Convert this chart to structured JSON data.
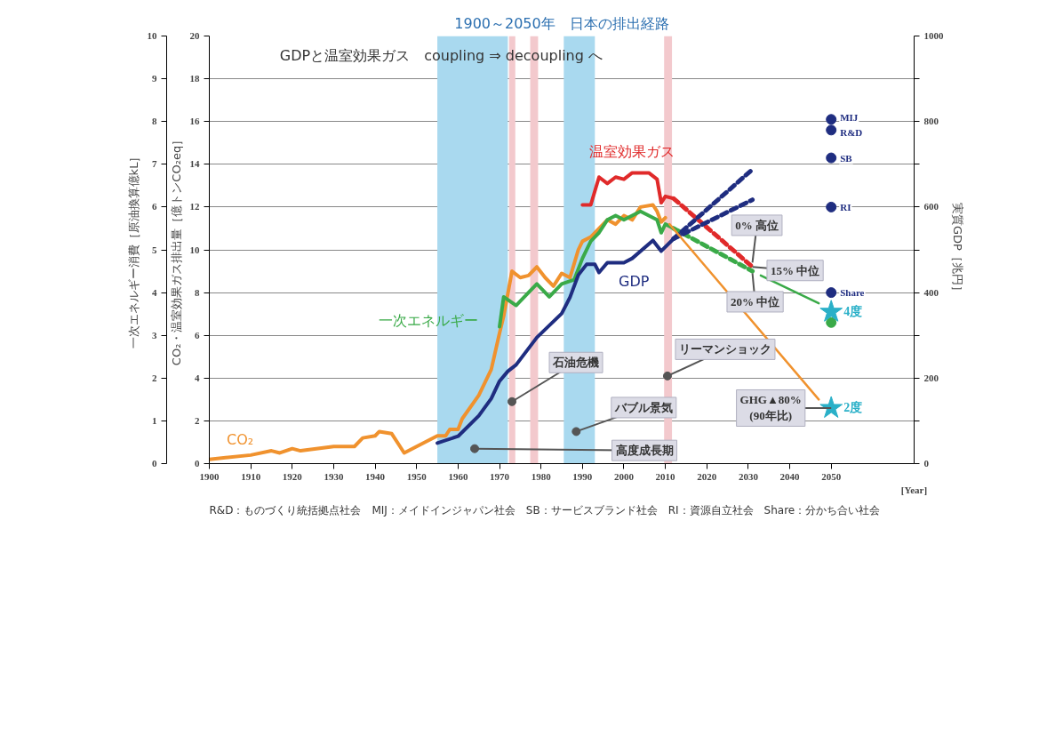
{
  "chart_data": {
    "type": "line",
    "title": "1900～2050年　日本の排出経路",
    "subtitle": "GDPと温室効果ガス　coupling ⇒ decoupling へ",
    "xlabel": "[Year]",
    "ylabel": "CO₂・温室効果ガス排出量［億トンCO₂eq］",
    "y2label": "実質GDP［兆円］",
    "y3label": "一次エネルギー消費［原油換算億kL］",
    "xlim": [
      1900,
      2070
    ],
    "xticks": [
      1900,
      1910,
      1920,
      1930,
      1940,
      1950,
      1960,
      1970,
      1980,
      1990,
      2000,
      2010,
      2020,
      2030,
      2040,
      2050
    ],
    "ylim": [
      0,
      20
    ],
    "yticks": [
      0,
      2,
      4,
      6,
      8,
      10,
      12,
      14,
      16,
      18,
      20
    ],
    "y2lim": [
      0,
      1000
    ],
    "y2ticks": [
      0,
      {
        "value": 100,
        "label": null
      },
      200,
      {
        "value": 300,
        "label": null
      },
      400,
      {
        "value": 500,
        "label": null
      },
      600,
      {
        "value": 700,
        "label": null
      },
      800,
      {
        "value": 900,
        "label": null
      },
      1000
    ],
    "y3lim": [
      0,
      10
    ],
    "y3ticks": [
      0,
      1,
      2,
      3,
      4,
      5,
      6,
      7,
      8,
      9,
      10
    ],
    "grid": "y",
    "bands": [
      {
        "axis": "x",
        "from": 1955,
        "to": 1972,
        "color": "#a9d9ef"
      },
      {
        "axis": "x",
        "from": 1985.5,
        "to": 1993,
        "color": "#a9d9ef"
      },
      {
        "axis": "x",
        "from": 1972.3,
        "to": 1973.8,
        "color": "#f3c9cd"
      },
      {
        "axis": "x",
        "from": 1977.4,
        "to": 1979.3,
        "color": "#f3c9cd"
      },
      {
        "axis": "x",
        "from": 2009.7,
        "to": 2011.6,
        "color": "#f3c9cd"
      }
    ],
    "series": [
      {
        "name": "CO₂",
        "color": "#f0922e",
        "x": [
          1900,
          1910,
          1915,
          1917,
          1920,
          1922,
          1930,
          1935,
          1937,
          1940,
          1941,
          1944,
          1946,
          1947,
          1950,
          1955,
          1957,
          1958,
          1960,
          1961,
          1965,
          1968,
          1970,
          1971,
          1973,
          1975,
          1977,
          1979,
          1981,
          1983,
          1985,
          1987,
          1989,
          1990,
          1992,
          1996,
          1998,
          2000,
          2002,
          2004,
          2007,
          2008,
          2009,
          2010
        ],
        "values": [
          0.2,
          0.4,
          0.6,
          0.5,
          0.7,
          0.6,
          0.8,
          0.8,
          1.2,
          1.3,
          1.5,
          1.4,
          0.8,
          0.5,
          0.8,
          1.3,
          1.3,
          1.6,
          1.6,
          2.1,
          3.2,
          4.4,
          6.1,
          6.9,
          9.0,
          8.7,
          8.8,
          9.2,
          8.7,
          8.3,
          8.9,
          8.7,
          10.0,
          10.4,
          10.6,
          11.4,
          11.2,
          11.6,
          11.4,
          12.0,
          12.1,
          11.8,
          11.3,
          11.5
        ]
      },
      {
        "name": "一次エネルギー",
        "color": "#3aaa48",
        "axis": "y3",
        "x": [
          1970,
          1971,
          1974,
          1976,
          1979,
          1982,
          1985,
          1988,
          1990,
          1992,
          1994,
          1996,
          1998,
          2000,
          2002,
          2004,
          2006,
          2008,
          2009,
          2010,
          2012
        ],
        "values": [
          3.2,
          3.9,
          3.7,
          3.9,
          4.2,
          3.9,
          4.2,
          4.3,
          4.8,
          5.2,
          5.4,
          5.7,
          5.8,
          5.7,
          5.8,
          5.9,
          5.8,
          5.7,
          5.4,
          5.6,
          5.5
        ]
      },
      {
        "name": "温室効果ガス",
        "color": "#e02a2a",
        "x": [
          1990,
          1992,
          1994,
          1996,
          1998,
          2000,
          2002,
          2004,
          2006,
          2008,
          2009,
          2010,
          2012
        ],
        "values": [
          12.1,
          12.1,
          13.4,
          13.1,
          13.4,
          13.3,
          13.6,
          13.6,
          13.6,
          13.3,
          12.2,
          12.5,
          12.4
        ]
      },
      {
        "name": "GDP",
        "color": "#1f2d80",
        "axis": "y2",
        "x": [
          1955,
          1960,
          1965,
          1968,
          1970,
          1972,
          1974,
          1979,
          1985,
          1987,
          1989,
          1991,
          1993,
          1994,
          1996,
          2000,
          2002,
          2007,
          2009,
          2012
        ],
        "values": [
          48,
          64,
          112,
          152,
          193,
          216,
          231,
          295,
          351,
          389,
          441,
          466,
          466,
          447,
          470,
          470,
          480,
          522,
          497,
          526
        ]
      },
      {
        "color": "#e02a2a",
        "line_style": "dashed",
        "x": [
          2012,
          2031
        ],
        "values": [
          12.4,
          9.2
        ]
      },
      {
        "color": "#3aaa48",
        "line_style": "dashed",
        "axis": "y3",
        "x": [
          2012,
          2031
        ],
        "values": [
          5.5,
          4.5
        ]
      },
      {
        "color": "#1f2d80",
        "line_style": "dashed",
        "axis": "y2",
        "x": [
          2012,
          2031
        ],
        "values": [
          526,
          688
        ]
      },
      {
        "color": "#1f2d80",
        "line_style": "dashed",
        "axis": "y2",
        "x": [
          2012,
          2031
        ],
        "values": [
          526,
          617
        ]
      },
      {
        "color": "#f0922e",
        "x": [
          2011,
          2047
        ],
        "values": [
          11.2,
          3.0
        ]
      },
      {
        "color": "#3aaa48",
        "x": [
          2033,
          2047
        ],
        "values": [
          8.8,
          7.5
        ]
      },
      {
        "name": "MIJ",
        "type": "scatter",
        "marker": "circle",
        "color": "#1f2d80",
        "axis": "y2",
        "x": [
          2050
        ],
        "values": [
          805
        ]
      },
      {
        "name": "R&D",
        "type": "scatter",
        "marker": "circle",
        "color": "#1f2d80",
        "axis": "y2",
        "x": [
          2050
        ],
        "values": [
          780
        ]
      },
      {
        "name": "SB",
        "type": "scatter",
        "marker": "circle",
        "color": "#1f2d80",
        "axis": "y2",
        "x": [
          2050
        ],
        "values": [
          715
        ]
      },
      {
        "name": "RI",
        "type": "scatter",
        "marker": "circle",
        "color": "#1f2d80",
        "axis": "y2",
        "x": [
          2050
        ],
        "values": [
          600
        ]
      },
      {
        "name": "Share",
        "type": "scatter",
        "marker": "circle",
        "color": "#1f2d80",
        "axis": "y2",
        "x": [
          2050
        ],
        "values": [
          400
        ]
      },
      {
        "type": "scatter",
        "marker": "circle",
        "color": "#3aaa48",
        "axis": "y3",
        "x": [
          2050
        ],
        "values": [
          3.3
        ]
      },
      {
        "name": "4度",
        "type": "scatter",
        "marker": "star",
        "color": "#2ab0c8",
        "x": [
          2050
        ],
        "values": [
          7.1
        ]
      },
      {
        "name": "2度",
        "type": "scatter",
        "marker": "star",
        "color": "#2ab0c8",
        "x": [
          2050
        ],
        "values": [
          2.6
        ]
      }
    ],
    "annotations": [
      {
        "text": "0% 高位",
        "x": 2031,
        "y": 9.4
      },
      {
        "text": "15% 中位",
        "x": 2031,
        "y": 9.2
      },
      {
        "text": "20% 中位",
        "x": 2031,
        "y": 8.9
      },
      {
        "text": "GHG▲80%\n(90年比)",
        "x": 2050,
        "y": 2.6
      },
      {
        "text": "リーマンショック",
        "x": 2010.5,
        "y": 4.1
      },
      {
        "text": "石油危機",
        "x": 1973,
        "y": 2.9
      },
      {
        "text": "バブル景気",
        "x": 1988.5,
        "y": 1.5
      },
      {
        "text": "高度成長期",
        "x": 1964,
        "y": 0.7
      },
      "R&D：ものづくり統括拠点社会　MIJ：メイドインジャパン社会　SB：サービスブランド社会　RI：資源自立社会　Share：分かち合い社会"
    ]
  }
}
